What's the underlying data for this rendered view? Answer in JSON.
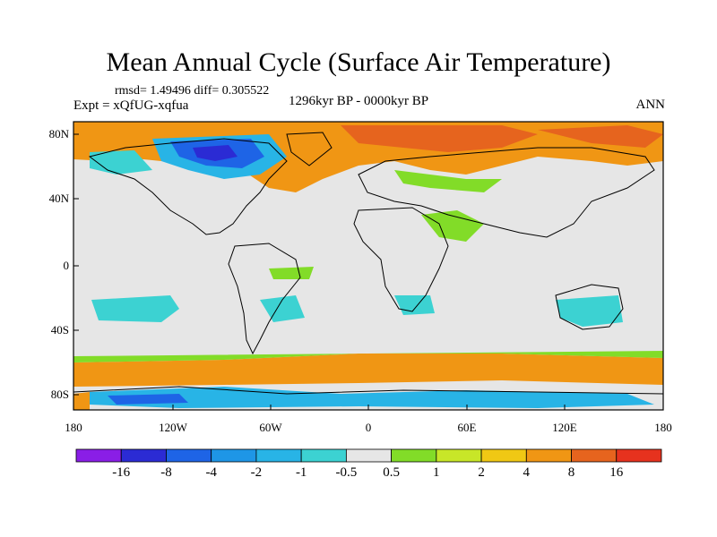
{
  "figure": {
    "title": "Mean Annual Cycle (Surface Air Temperature)",
    "stats": "rmsd= 1.49496 diff= 0.305522",
    "experiment": "Expt = xQfUG-xqfua",
    "period": "1296kyr BP - 0000kyr BP",
    "season": "ANN"
  },
  "axes": {
    "lat_labels": [
      "80N",
      "40N",
      "0",
      "40S",
      "80S"
    ],
    "lat_values": [
      80,
      40,
      0,
      -40,
      -80
    ],
    "lon_labels": [
      "180",
      "120W",
      "60W",
      "0",
      "60E",
      "120E",
      "180"
    ],
    "lon_values": [
      -180,
      -120,
      -60,
      0,
      60,
      120,
      180
    ],
    "lat_range": [
      -90,
      90
    ],
    "lon_range": [
      -180,
      180
    ]
  },
  "colorbar": {
    "labels": [
      "-16",
      "-8",
      "-4",
      "-2",
      "-1",
      "-0.5",
      "0.5",
      "1",
      "2",
      "4",
      "8",
      "16"
    ],
    "colors": [
      "#8a1ee6",
      "#2b2bd4",
      "#1e64e6",
      "#1e96e6",
      "#28b4e6",
      "#3cd2d2",
      "#e6e6e6",
      "#82dc28",
      "#c8e628",
      "#f0c814",
      "#f09614",
      "#e6641e",
      "#e6321e"
    ]
  },
  "map_colors": {
    "neutral": "#e6e6e6",
    "coast": "#000000"
  }
}
